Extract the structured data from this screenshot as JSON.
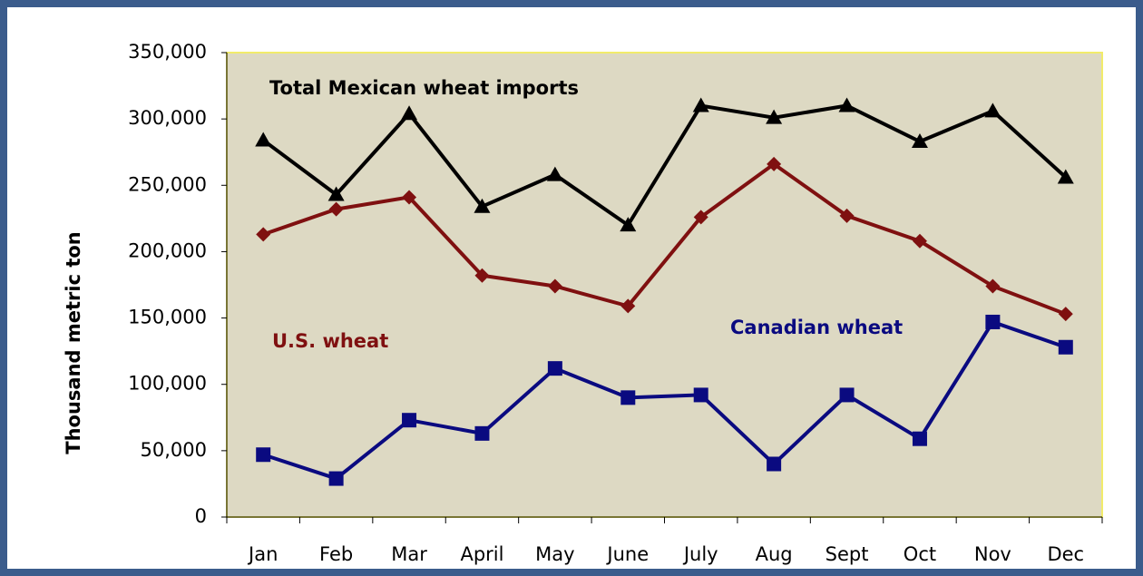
{
  "chart_data": {
    "type": "line",
    "y_label": "Thousand metric ton",
    "categories": [
      "Jan",
      "Feb",
      "Mar",
      "April",
      "May",
      "June",
      "July",
      "Aug",
      "Sept",
      "Oct",
      "Nov",
      "Dec"
    ],
    "series": [
      {
        "name": "Total Mexican wheat imports",
        "color": "#000000",
        "marker": "triangle",
        "values": [
          284000,
          243000,
          304000,
          234000,
          258000,
          220000,
          310000,
          301000,
          310000,
          283000,
          306000,
          256000
        ]
      },
      {
        "name": "U.S. wheat",
        "color": "#7f1010",
        "marker": "diamond",
        "values": [
          213000,
          232000,
          241000,
          182000,
          174000,
          159000,
          226000,
          266000,
          227000,
          208000,
          174000,
          153000
        ]
      },
      {
        "name": "Canadian wheat",
        "color": "#0a0a80",
        "marker": "square",
        "values": [
          47000,
          29000,
          73000,
          63000,
          112000,
          90000,
          92000,
          40000,
          92000,
          59000,
          147000,
          128000
        ]
      }
    ],
    "ylim": [
      0,
      350000
    ],
    "yticks": [
      0,
      {
        "value": 50000,
        "label": "50,000"
      },
      {
        "value": 100000,
        "label": "100,000"
      },
      {
        "value": 150000,
        "label": "150,000"
      },
      {
        "value": 200000,
        "label": "200,000"
      },
      {
        "value": 250000,
        "label": "250,000"
      },
      {
        "value": 300000,
        "label": "300,000"
      },
      {
        "value": 350000,
        "label": "350,000"
      }
    ],
    "plot_background": "#ddd9c3"
  }
}
